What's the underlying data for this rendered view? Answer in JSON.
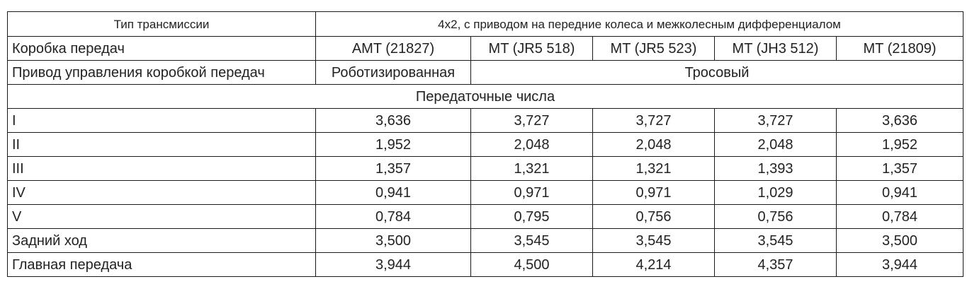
{
  "table": {
    "header": {
      "label": "Тип трансмиссии",
      "value": "4x2, с приводом на передние колеса и межколесным дифференциалом"
    },
    "gearbox": {
      "label": "Коробка передач",
      "models": [
        "AMT (21827)",
        "MT (JR5 518)",
        "MT (JR5 523)",
        "MT (JH3 512)",
        "MT (21809)"
      ]
    },
    "control": {
      "label": "Привод управления коробкой передач",
      "robotic": "Роботизированная",
      "cable": "Тросовый"
    },
    "section_title": "Передаточные числа",
    "rows": [
      {
        "label": "I",
        "values": [
          "3,636",
          "3,727",
          "3,727",
          "3,727",
          "3,636"
        ]
      },
      {
        "label": "II",
        "values": [
          "1,952",
          "2,048",
          "2,048",
          "2,048",
          "1,952"
        ]
      },
      {
        "label": "III",
        "values": [
          "1,357",
          "1,321",
          "1,321",
          "1,393",
          "1,357"
        ]
      },
      {
        "label": "IV",
        "values": [
          "0,941",
          "0,971",
          "0,971",
          "1,029",
          "0,941"
        ]
      },
      {
        "label": "V",
        "values": [
          "0,784",
          "0,795",
          "0,756",
          "0,756",
          "0,784"
        ]
      },
      {
        "label": "Задний ход",
        "values": [
          "3,500",
          "3,545",
          "3,545",
          "3,545",
          "3,500"
        ]
      },
      {
        "label": "Главная передача",
        "values": [
          "3,944",
          "4,500",
          "4,214",
          "4,357",
          "3,944"
        ]
      }
    ]
  }
}
